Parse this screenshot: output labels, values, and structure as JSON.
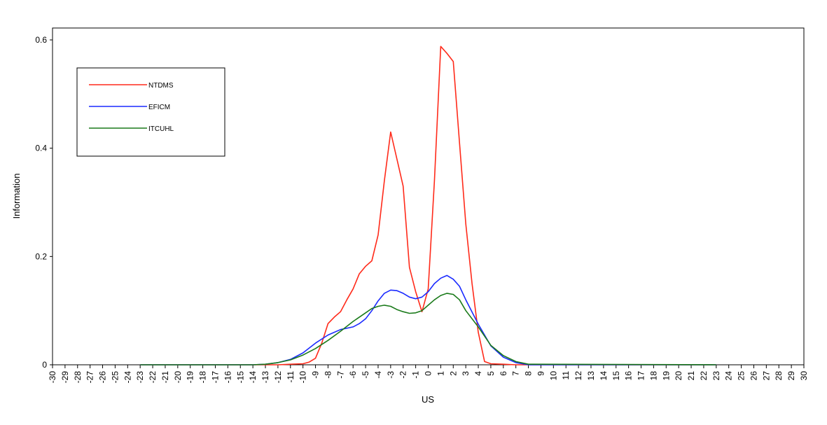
{
  "chart_data": {
    "type": "line",
    "title": "",
    "xlabel": "US",
    "ylabel": "Information",
    "xlim": [
      -30,
      30
    ],
    "ylim": [
      0,
      0.62
    ],
    "x_ticks": [
      -30,
      -29,
      -28,
      -27,
      -26,
      -25,
      -24,
      -23,
      -22,
      -21,
      -20,
      -19,
      -18,
      -17,
      -16,
      -15,
      -14,
      -13,
      -12,
      -11,
      -10,
      -9,
      -8,
      -7,
      -6,
      -5,
      -4,
      -3,
      -2,
      -1,
      0,
      1,
      2,
      3,
      4,
      5,
      6,
      7,
      8,
      9,
      10,
      11,
      12,
      13,
      14,
      15,
      16,
      17,
      18,
      19,
      20,
      21,
      22,
      23,
      24,
      25,
      26,
      27,
      28,
      29,
      30
    ],
    "x_tick_labels": [
      "-30",
      "-29",
      "-28",
      "-27",
      "-26",
      "-25",
      "-24",
      "-23",
      "-22",
      "-21",
      "-20",
      "-19",
      "-18",
      "-17",
      "-16",
      "-15",
      "-14",
      "-13",
      "-12",
      "-11",
      "-10",
      "-9",
      "-8",
      "-7",
      "-6",
      "-5",
      "-4",
      "-3",
      "-2",
      "-1",
      "0",
      "1",
      "2",
      "3",
      "4",
      "5",
      "6",
      "7",
      "8",
      "9",
      "10",
      "11",
      "12",
      "13",
      "14",
      "15",
      "16",
      "17",
      "18",
      "19",
      "20",
      "21",
      "22",
      "23",
      "24",
      "25",
      "26",
      "27",
      "28",
      "29",
      "30"
    ],
    "y_ticks": [
      0,
      0.2,
      0.4,
      0.6
    ],
    "y_tick_labels": [
      "0",
      "0.2",
      "0.4",
      "0.6"
    ],
    "grid": false,
    "legend_position": "top-left",
    "series": [
      {
        "name": "NTDMS",
        "color": "#ff2a1a",
        "x": [
          -23,
          -14,
          -13,
          -12,
          -11,
          -10,
          -9.5,
          -9,
          -8.5,
          -8,
          -7.5,
          -7,
          -6.5,
          -6,
          -5.5,
          -5,
          -4.5,
          -4,
          -3.5,
          -3,
          -2.5,
          -2,
          -1.5,
          -1,
          -0.5,
          0,
          0.5,
          1,
          1.5,
          2,
          2.5,
          3,
          3.5,
          4,
          4.5,
          5,
          6,
          7,
          8,
          23
        ],
        "y": [
          0,
          0,
          0,
          0,
          0.001,
          0.002,
          0.005,
          0.012,
          0.04,
          0.076,
          0.088,
          0.098,
          0.12,
          0.14,
          0.168,
          0.182,
          0.192,
          0.24,
          0.34,
          0.43,
          0.38,
          0.33,
          0.18,
          0.135,
          0.098,
          0.14,
          0.34,
          0.588,
          0.575,
          0.56,
          0.41,
          0.26,
          0.15,
          0.06,
          0.006,
          0.002,
          0.001,
          0,
          0,
          0
        ]
      },
      {
        "name": "EFICM",
        "color": "#1a2aff",
        "x": [
          -23,
          -14,
          -13,
          -12,
          -11,
          -10,
          -9,
          -8,
          -7,
          -6,
          -5.5,
          -5,
          -4.5,
          -4,
          -3.5,
          -3,
          -2.5,
          -2,
          -1.5,
          -1,
          -0.5,
          0,
          0.5,
          1,
          1.5,
          2,
          2.5,
          3,
          4,
          5,
          6,
          7,
          8,
          23
        ],
        "y": [
          0,
          0,
          0.001,
          0.004,
          0.01,
          0.022,
          0.04,
          0.055,
          0.065,
          0.07,
          0.076,
          0.085,
          0.1,
          0.118,
          0.132,
          0.138,
          0.137,
          0.132,
          0.125,
          0.122,
          0.125,
          0.135,
          0.15,
          0.16,
          0.165,
          0.158,
          0.145,
          0.12,
          0.075,
          0.035,
          0.014,
          0.004,
          0,
          0
        ]
      },
      {
        "name": "ITCUHL",
        "color": "#1a7a1a",
        "x": [
          -23,
          -14,
          -13,
          -12,
          -11,
          -10,
          -9,
          -8,
          -7,
          -6,
          -5,
          -4.5,
          -4,
          -3.5,
          -3,
          -2.5,
          -2,
          -1.5,
          -1,
          -0.5,
          0,
          0.5,
          1,
          1.5,
          2,
          2.5,
          3,
          4,
          5,
          6,
          7,
          8,
          23
        ],
        "y": [
          0,
          0,
          0.001,
          0.004,
          0.009,
          0.018,
          0.03,
          0.045,
          0.062,
          0.08,
          0.096,
          0.104,
          0.108,
          0.11,
          0.108,
          0.102,
          0.098,
          0.095,
          0.096,
          0.1,
          0.11,
          0.12,
          0.128,
          0.132,
          0.13,
          0.12,
          0.1,
          0.07,
          0.036,
          0.017,
          0.006,
          0.001,
          0
        ]
      }
    ]
  }
}
